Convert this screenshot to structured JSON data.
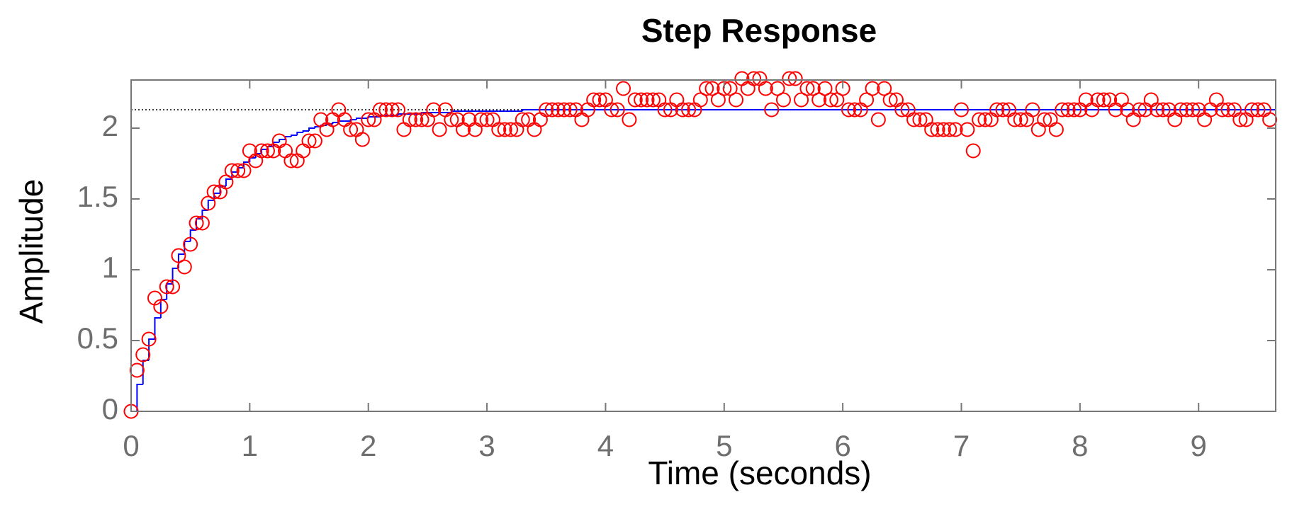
{
  "chart_data": {
    "type": "step",
    "title": "Step Response",
    "x_label": "Time (seconds)",
    "y_label": "Amplitude",
    "xlim": [
      0,
      9.65
    ],
    "ylim": [
      0,
      2.34
    ],
    "xticks": [
      0,
      1,
      2,
      3,
      4,
      5,
      6,
      7,
      8,
      9
    ],
    "yticks": [
      0,
      0.5,
      1,
      1.5,
      2
    ],
    "steady_state": 2.13,
    "x": [
      0,
      0.05,
      0.1,
      0.15,
      0.2,
      0.25,
      0.3,
      0.35,
      0.4,
      0.45,
      0.5,
      0.55,
      0.6,
      0.65,
      0.7,
      0.75,
      0.8,
      0.85,
      0.9,
      0.95,
      1,
      1.05,
      1.1,
      1.15,
      1.2,
      1.25,
      1.3,
      1.35,
      1.4,
      1.45,
      1.5,
      1.55,
      1.6,
      1.65,
      1.7,
      1.75,
      1.8,
      1.85,
      1.9,
      1.95,
      2,
      2.05,
      2.1,
      2.15,
      2.2,
      2.25,
      2.3,
      2.35,
      2.4,
      2.45,
      2.5,
      2.55,
      2.6,
      2.65,
      2.7,
      2.75,
      2.8,
      2.85,
      2.9,
      2.95,
      3,
      3.05,
      3.1,
      3.15,
      3.2,
      3.25,
      3.3,
      3.35,
      3.4,
      3.45,
      3.5,
      3.55,
      3.6,
      3.65,
      3.7,
      3.75,
      3.8,
      3.85,
      3.9,
      3.95,
      4,
      4.05,
      4.1,
      4.15,
      4.2,
      4.25,
      4.3,
      4.35,
      4.4,
      4.45,
      4.5,
      4.55,
      4.6,
      4.65,
      4.7,
      4.75,
      4.8,
      4.85,
      4.9,
      4.95,
      5,
      5.05,
      5.1,
      5.15,
      5.2,
      5.25,
      5.3,
      5.35,
      5.4,
      5.45,
      5.5,
      5.55,
      5.6,
      5.65,
      5.7,
      5.75,
      5.8,
      5.85,
      5.9,
      5.95,
      6,
      6.05,
      6.1,
      6.15,
      6.2,
      6.25,
      6.3,
      6.35,
      6.4,
      6.45,
      6.5,
      6.55,
      6.6,
      6.65,
      6.7,
      6.75,
      6.8,
      6.85,
      6.9,
      6.95,
      7,
      7.05,
      7.1,
      7.15,
      7.2,
      7.25,
      7.3,
      7.35,
      7.4,
      7.45,
      7.5,
      7.55,
      7.6,
      7.65,
      7.7,
      7.75,
      7.8,
      7.85,
      7.9,
      7.95,
      8,
      8.05,
      8.1,
      8.15,
      8.2,
      8.25,
      8.3,
      8.35,
      8.4,
      8.45,
      8.5,
      8.55,
      8.6,
      8.65,
      8.7,
      8.75,
      8.8,
      8.85,
      8.9,
      8.95,
      9,
      9.05,
      9.1,
      9.15,
      9.2,
      9.25,
      9.3,
      9.35,
      9.4,
      9.45,
      9.5,
      9.55,
      9.6
    ],
    "series": [
      {
        "style": "stairs",
        "color": "#0000ff",
        "values": [
          0,
          0.19,
          0.36,
          0.51,
          0.66,
          0.79,
          0.9,
          1.01,
          1.11,
          1.2,
          1.28,
          1.36,
          1.42,
          1.49,
          1.54,
          1.59,
          1.64,
          1.69,
          1.72,
          1.76,
          1.79,
          1.82,
          1.85,
          1.87,
          1.9,
          1.92,
          1.94,
          1.95,
          1.97,
          1.98,
          2,
          2.01,
          2.02,
          2.03,
          2.04,
          2.05,
          2.05,
          2.06,
          2.07,
          2.07,
          2.08,
          2.08,
          2.09,
          2.09,
          2.09,
          2.1,
          2.1,
          2.1,
          2.1,
          2.11,
          2.11,
          2.11,
          2.11,
          2.11,
          2.12,
          2.12,
          2.12,
          2.12,
          2.12,
          2.12,
          2.12,
          2.12,
          2.12,
          2.12,
          2.12,
          2.12,
          2.13,
          2.13,
          2.13,
          2.13,
          2.13,
          2.13,
          2.13,
          2.13,
          2.13,
          2.13,
          2.13,
          2.13,
          2.13,
          2.13,
          2.13,
          2.13,
          2.13,
          2.13,
          2.13,
          2.13,
          2.13,
          2.13,
          2.13,
          2.13,
          2.13,
          2.13,
          2.13,
          2.13,
          2.13,
          2.13,
          2.13,
          2.13,
          2.13,
          2.13,
          2.13,
          2.13,
          2.13,
          2.13,
          2.13,
          2.13,
          2.13,
          2.13,
          2.13,
          2.13,
          2.13,
          2.13,
          2.13,
          2.13,
          2.13,
          2.13,
          2.13,
          2.13,
          2.13,
          2.13,
          2.13,
          2.13,
          2.13,
          2.13,
          2.13,
          2.13,
          2.13,
          2.13,
          2.13,
          2.13,
          2.13,
          2.13,
          2.13,
          2.13,
          2.13,
          2.13,
          2.13,
          2.13,
          2.13,
          2.13,
          2.13,
          2.13,
          2.13,
          2.13,
          2.13,
          2.13,
          2.13,
          2.13,
          2.13,
          2.13,
          2.13,
          2.13,
          2.13,
          2.13,
          2.13,
          2.13,
          2.13,
          2.13,
          2.13,
          2.13,
          2.13,
          2.13,
          2.13,
          2.13,
          2.13,
          2.13,
          2.13,
          2.13,
          2.13,
          2.13,
          2.13,
          2.13,
          2.13,
          2.13,
          2.13,
          2.13,
          2.13,
          2.13,
          2.13,
          2.13,
          2.13,
          2.13,
          2.13,
          2.13,
          2.13,
          2.13,
          2.13,
          2.13,
          2.13,
          2.13,
          2.13,
          2.13,
          2.13
        ]
      },
      {
        "style": "markers",
        "color": "#ff0000",
        "values": [
          0,
          0.29,
          0.4,
          0.51,
          0.8,
          0.74,
          0.88,
          0.88,
          1.1,
          1.02,
          1.18,
          1.33,
          1.33,
          1.47,
          1.55,
          1.55,
          1.62,
          1.7,
          1.7,
          1.7,
          1.84,
          1.77,
          1.84,
          1.84,
          1.84,
          1.91,
          1.84,
          1.77,
          1.77,
          1.84,
          1.91,
          1.91,
          2.06,
          1.99,
          2.06,
          2.13,
          2.06,
          1.99,
          1.99,
          1.92,
          2.06,
          2.06,
          2.13,
          2.13,
          2.13,
          2.13,
          1.99,
          2.06,
          2.06,
          2.06,
          2.06,
          2.13,
          1.99,
          2.13,
          2.06,
          2.06,
          1.99,
          2.06,
          1.99,
          2.06,
          2.06,
          2.06,
          1.99,
          1.99,
          1.99,
          1.99,
          2.06,
          2.06,
          1.99,
          2.06,
          2.13,
          2.13,
          2.13,
          2.13,
          2.13,
          2.13,
          2.06,
          2.13,
          2.2,
          2.2,
          2.2,
          2.13,
          2.13,
          2.28,
          2.06,
          2.2,
          2.2,
          2.2,
          2.2,
          2.2,
          2.13,
          2.13,
          2.2,
          2.13,
          2.13,
          2.13,
          2.2,
          2.28,
          2.28,
          2.2,
          2.28,
          2.28,
          2.2,
          2.35,
          2.28,
          2.35,
          2.35,
          2.28,
          2.13,
          2.28,
          2.2,
          2.35,
          2.35,
          2.2,
          2.28,
          2.28,
          2.2,
          2.28,
          2.2,
          2.2,
          2.28,
          2.13,
          2.13,
          2.13,
          2.2,
          2.28,
          2.06,
          2.28,
          2.2,
          2.2,
          2.13,
          2.13,
          2.06,
          2.06,
          2.06,
          1.99,
          1.99,
          1.99,
          1.99,
          1.99,
          2.13,
          1.99,
          1.84,
          2.06,
          2.06,
          2.06,
          2.13,
          2.13,
          2.13,
          2.06,
          2.06,
          2.06,
          2.13,
          1.99,
          2.06,
          2.06,
          1.99,
          2.13,
          2.13,
          2.13,
          2.13,
          2.2,
          2.13,
          2.2,
          2.2,
          2.2,
          2.13,
          2.2,
          2.13,
          2.06,
          2.13,
          2.13,
          2.2,
          2.13,
          2.13,
          2.13,
          2.06,
          2.13,
          2.13,
          2.13,
          2.13,
          2.06,
          2.13,
          2.2,
          2.13,
          2.13,
          2.13,
          2.06,
          2.06,
          2.13,
          2.13,
          2.13,
          2.06
        ]
      }
    ]
  }
}
